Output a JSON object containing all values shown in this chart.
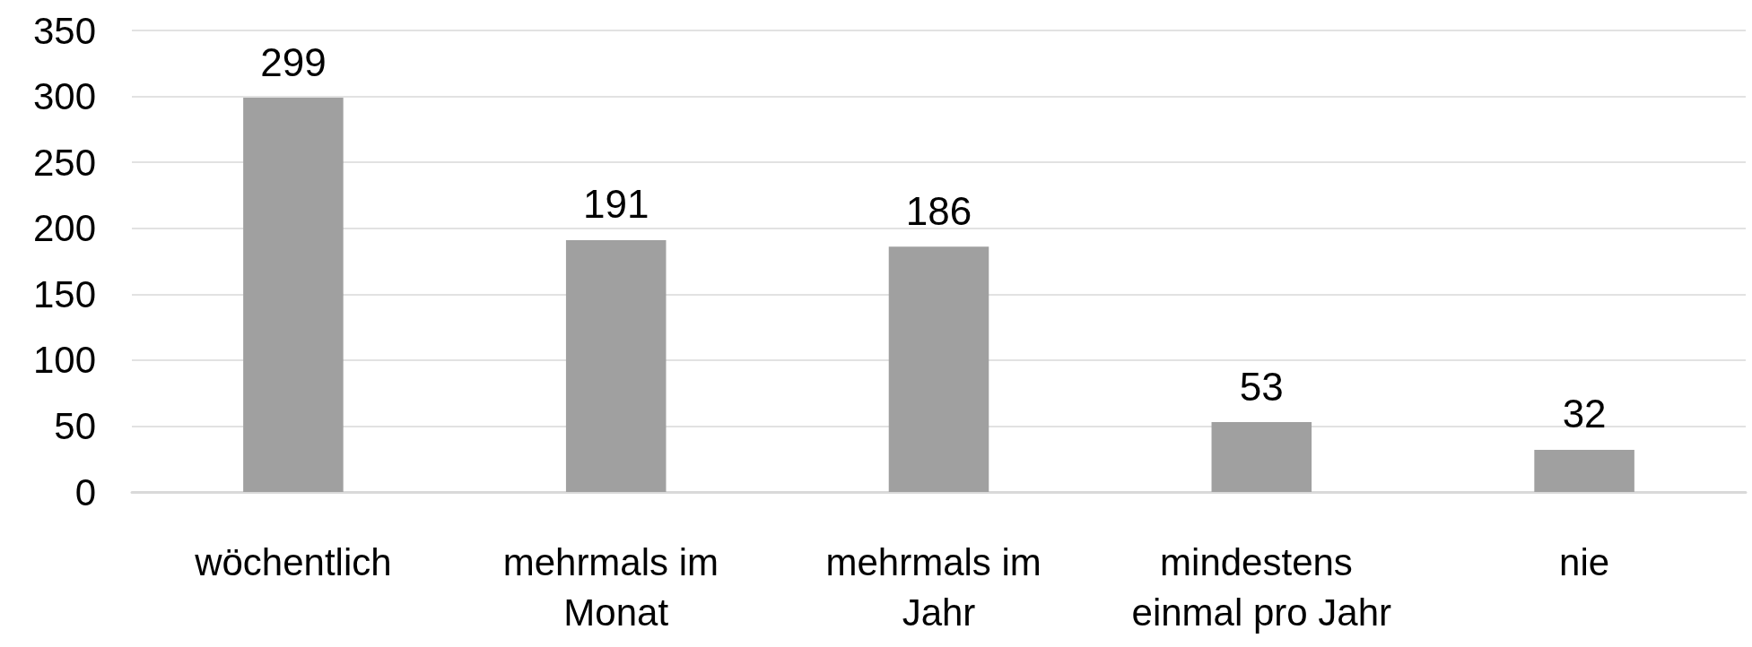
{
  "chart_data": {
    "type": "bar",
    "categories": [
      "wöchentlich",
      "mehrmals im Monat",
      "mehrmals im Jahr",
      "mindestens einmal pro Jahr",
      "nie"
    ],
    "values": [
      299,
      191,
      186,
      53,
      32
    ],
    "color": "#a0a0a0",
    "ylim": [
      0,
      350
    ],
    "yticks": [
      0,
      50,
      100,
      150,
      200,
      250,
      300,
      350
    ],
    "grid": "y",
    "data_labels": true
  }
}
